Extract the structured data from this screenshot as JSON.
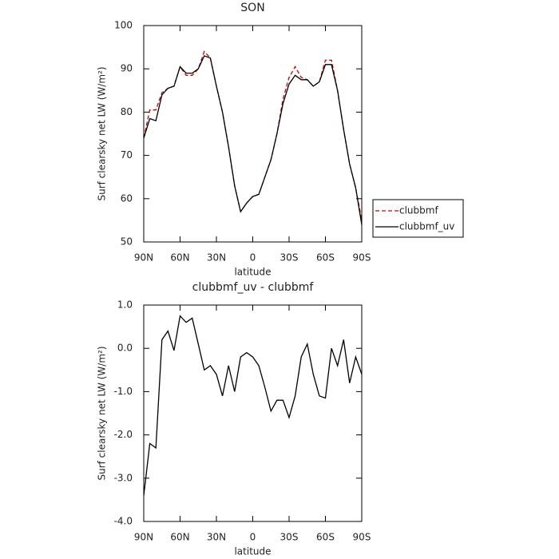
{
  "chart_data": [
    {
      "type": "line",
      "title": "SON",
      "x_label": "latitude",
      "y_label": "Surf clearsky net LW (W/m²)",
      "x": [
        90,
        85,
        80,
        75,
        70,
        65,
        60,
        55,
        50,
        45,
        40,
        35,
        30,
        25,
        20,
        15,
        10,
        5,
        0,
        -5,
        -10,
        -15,
        -20,
        -25,
        -30,
        -35,
        -40,
        -45,
        -50,
        -55,
        -60,
        -65,
        -70,
        -75,
        -80,
        -85,
        -90
      ],
      "series": [
        {
          "name": "clubbmf",
          "color": "#cc0000",
          "linestyle": "dashed",
          "values": [
            74,
            80.5,
            80.5,
            84.5,
            85.5,
            86,
            90.5,
            88.5,
            88.5,
            90,
            94,
            92.5,
            86,
            80,
            72,
            63,
            57,
            59,
            60.5,
            61,
            65,
            69,
            75,
            83,
            88,
            90.5,
            88,
            87.5,
            86,
            87,
            92,
            92,
            85,
            76,
            68,
            62.5,
            55
          ]
        },
        {
          "name": "clubbmf_uv",
          "color": "#000000",
          "linestyle": "solid",
          "values": [
            74,
            78.5,
            78,
            84,
            85.5,
            86,
            90.5,
            89,
            89,
            90,
            93,
            92.5,
            86,
            80,
            72,
            63,
            57,
            59,
            60.5,
            61,
            65,
            69,
            75,
            82,
            86.5,
            88.5,
            87.5,
            87.5,
            86,
            87,
            91,
            91,
            85,
            76,
            68,
            62.5,
            54
          ]
        }
      ],
      "xlim": [
        90,
        -90
      ],
      "xticks": [
        {
          "value": 90,
          "label": "90N"
        },
        {
          "value": 60,
          "label": "60N"
        },
        {
          "value": 30,
          "label": "30N"
        },
        0,
        {
          "value": -30,
          "label": "30S"
        },
        {
          "value": -60,
          "label": "60S"
        },
        {
          "value": -90,
          "label": "90S"
        }
      ],
      "ylim": [
        50,
        100
      ],
      "yticks": [
        50,
        60,
        70,
        80,
        90,
        100
      ],
      "legend": "right"
    },
    {
      "type": "line",
      "title": "clubbmf_uv - clubbmf",
      "x_label": "latitude",
      "y_label": "Surf clearsky net LW (W/m²)",
      "x": [
        90,
        85,
        80,
        75,
        70,
        65,
        60,
        55,
        50,
        45,
        40,
        35,
        30,
        25,
        20,
        15,
        10,
        5,
        0,
        -5,
        -10,
        -15,
        -20,
        -25,
        -30,
        -35,
        -40,
        -45,
        -50,
        -55,
        -60,
        -65,
        -70,
        -75,
        -80,
        -85,
        -90
      ],
      "series": [
        {
          "color": "#000000",
          "linestyle": "solid",
          "values": [
            -3.4,
            -2.2,
            -2.3,
            0.2,
            0.4,
            -0.05,
            0.75,
            0.6,
            0.7,
            0.1,
            -0.5,
            -0.4,
            -0.6,
            -1.1,
            -0.4,
            -1.0,
            -0.2,
            -0.1,
            -0.2,
            -0.4,
            -0.9,
            -1.45,
            -1.2,
            -1.2,
            -1.6,
            -1.1,
            -0.2,
            0.1,
            -0.6,
            -1.1,
            -1.15,
            0.0,
            -0.4,
            0.2,
            -0.8,
            -0.2,
            -0.6
          ]
        }
      ],
      "xlim": [
        90,
        -90
      ],
      "xticks": [
        {
          "value": 90,
          "label": "90N"
        },
        {
          "value": 60,
          "label": "60N"
        },
        {
          "value": 30,
          "label": "30N"
        },
        0,
        {
          "value": -30,
          "label": "30S"
        },
        {
          "value": -60,
          "label": "60S"
        },
        {
          "value": -90,
          "label": "90S"
        }
      ],
      "ylim": [
        -4,
        1
      ],
      "yticks": [
        {
          "value": -4,
          "label": "-4.0"
        },
        {
          "value": -3,
          "label": "-3.0"
        },
        {
          "value": -2,
          "label": "-2.0"
        },
        {
          "value": -1,
          "label": "-1.0"
        },
        {
          "value": 0,
          "label": "0.0"
        },
        {
          "value": 1,
          "label": "1.0"
        }
      ]
    }
  ]
}
